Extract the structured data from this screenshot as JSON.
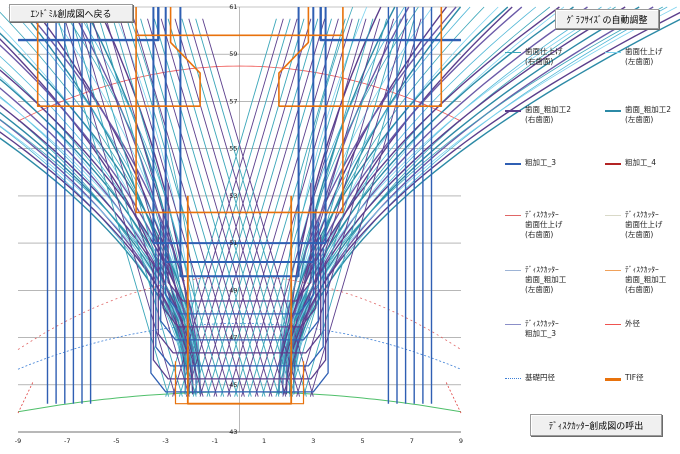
{
  "buttons": {
    "endmill": "ｴﾝﾄﾞﾐﾙ創成図へ戻る",
    "autosize": "ｸﾞﾗﾌｻｲｽﾞの自動調整",
    "disc": "ﾃﾞｨｽｸｶｯﾀｰ創成図の呼出"
  },
  "chart_data": {
    "type": "line",
    "xlim": [
      -9,
      9
    ],
    "ylim": [
      43,
      61
    ],
    "x_ticks": [
      "-9",
      "-7",
      "-5",
      "-3",
      "-1",
      "1",
      "3",
      "5",
      "7",
      "9"
    ],
    "y_ticks": [
      "43",
      "45",
      "47",
      "49",
      "51",
      "53",
      "55",
      "57",
      "59",
      "61"
    ],
    "grid": true,
    "legend_placement": "right",
    "legend": [
      {
        "label": "歯面仕上げ\n(右歯面)",
        "color": "#3aa6b9",
        "style": "solid",
        "width": 1
      },
      {
        "label": "歯面仕上げ\n(左歯面)",
        "color": "#7dd3ef",
        "style": "solid",
        "width": 1
      },
      {
        "label": "歯面_粗加工2\n(右歯面)",
        "color": "#5b3e8c",
        "style": "solid",
        "width": 2
      },
      {
        "label": "歯面_粗加工2\n(左歯面)",
        "color": "#2c8aa6",
        "style": "solid",
        "width": 2
      },
      {
        "label": "粗加工_3",
        "color": "#2f5fb3",
        "style": "solid",
        "width": 2.5
      },
      {
        "label": "粗加工_4",
        "color": "#b32424",
        "style": "solid",
        "width": 2.5
      },
      {
        "label": "ﾃﾞｨｽｸｶｯﾀｰ\n歯面仕上げ\n(右歯面)",
        "color": "#e06666",
        "style": "solid",
        "width": 1
      },
      {
        "label": "ﾃﾞｨｽｸｶｯﾀｰ\n歯面仕上げ\n(左歯面)",
        "color": "#d9d9c8",
        "style": "solid",
        "width": 1
      },
      {
        "label": "ﾃﾞｨｽｸｶｯﾀｰ\n歯面_粗加工\n(左歯面)",
        "color": "#9db4d6",
        "style": "solid",
        "width": 1.5
      },
      {
        "label": "ﾃﾞｨｽｸｶｯﾀｰ\n歯面_粗加工\n(右歯面)",
        "color": "#f0a15a",
        "style": "solid",
        "width": 1.5
      },
      {
        "label": "ﾃﾞｨｽｸｶｯﾀｰ\n粗加工_3",
        "color": "#8b8fc8",
        "style": "solid",
        "width": 1.5
      },
      {
        "label": "外径",
        "color": "#ef5350",
        "style": "solid",
        "width": 1
      },
      {
        "label": "基礎円径",
        "color": "#3d7fd6",
        "style": "dotted",
        "width": 1
      },
      {
        "label": "TIF径",
        "color": "#e8720c",
        "style": "solid",
        "width": 3
      }
    ]
  }
}
